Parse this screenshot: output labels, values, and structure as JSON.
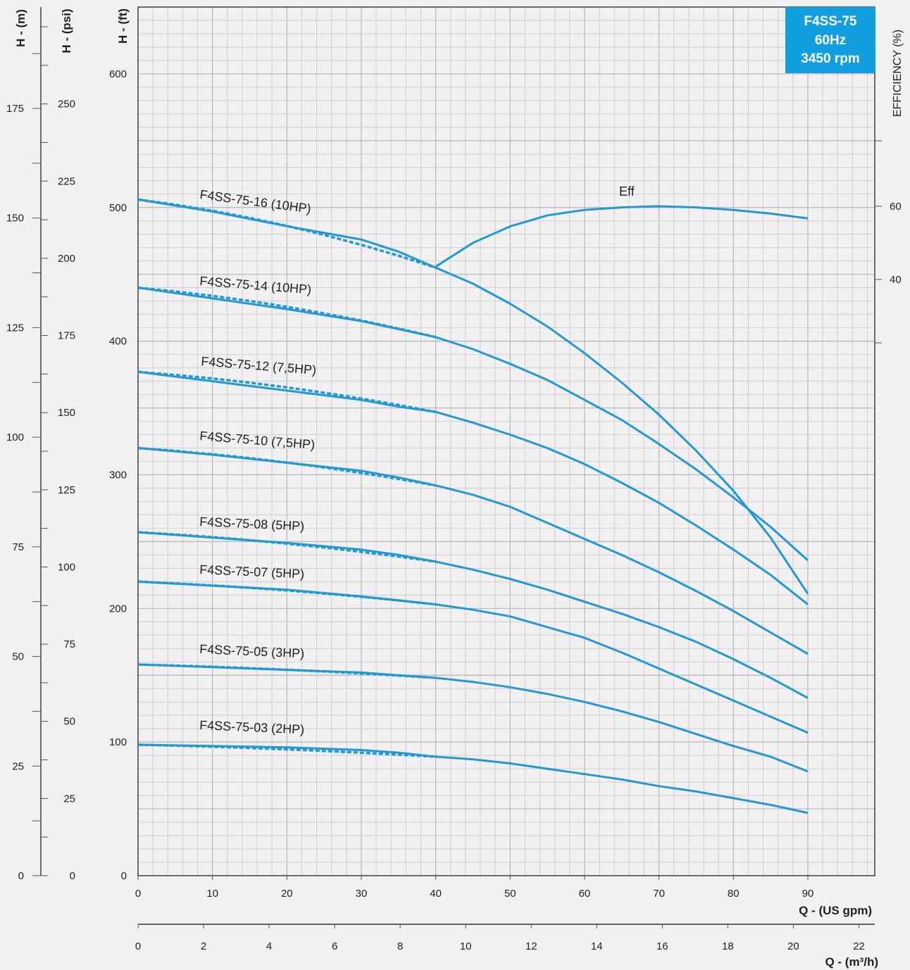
{
  "colors": {
    "curve": "#1f9ad9",
    "badge": "#129fe0",
    "background": "#f2f0f1"
  },
  "badge": {
    "line1": "F4SS-75",
    "line2": "60Hz",
    "line3": "3450 rpm"
  },
  "axes": {
    "h_m_label": "H - (m)",
    "h_psi_label": "H - (psi)",
    "h_ft_label": "H - (ft)",
    "efficiency_label": "EFFICIENCY (%)",
    "q_gpm_label": "Q - (US gpm)",
    "q_m3h_label": "Q - (m³/h)"
  },
  "chart_data": {
    "type": "line",
    "title": "",
    "x_label": "Q - (US gpm)",
    "x_secondary_label": "Q - (m³/h)",
    "y_label": "H - (ft)",
    "y_secondary_labels": [
      "H - (m)",
      "H - (psi)"
    ],
    "y2_label": "EFFICIENCY (%)",
    "xlim": [
      0,
      99
    ],
    "ylim": [
      0,
      650
    ],
    "x_ticks": [
      0,
      10,
      20,
      30,
      40,
      50,
      60,
      70,
      80,
      90
    ],
    "y_ticks": [
      0,
      100,
      200,
      300,
      400,
      500,
      600
    ],
    "x2_ticks": [
      0,
      2,
      4,
      6,
      8,
      10,
      12,
      14,
      16,
      18,
      20,
      22
    ],
    "h_m_ticks": [
      0,
      25,
      50,
      75,
      100,
      125,
      150,
      175
    ],
    "h_psi_ticks": [
      0,
      25,
      50,
      75,
      100,
      125,
      150,
      175,
      200,
      225,
      250
    ],
    "eff_ticks": [
      40,
      60
    ],
    "grid": true,
    "series": [
      {
        "name": "F4SS-75-16 (10HP)",
        "x": [
          0,
          10,
          20,
          30,
          35,
          40,
          45,
          50,
          55,
          60,
          65,
          70,
          75,
          80,
          85,
          90
        ],
        "y": [
          506,
          497,
          486,
          476,
          467,
          455,
          443,
          428,
          411,
          391,
          369,
          345,
          318,
          288,
          253,
          211
        ]
      },
      {
        "name": "F4SS-75-14 (10HP)",
        "x": [
          0,
          10,
          20,
          30,
          35,
          40,
          45,
          50,
          55,
          60,
          65,
          70,
          75,
          80,
          85,
          90
        ],
        "y": [
          440,
          432,
          424,
          415,
          409,
          403,
          394,
          383,
          371,
          356,
          341,
          323,
          304,
          283,
          261,
          236
        ]
      },
      {
        "name": "F4SS-75-12 (7,5HP)",
        "x": [
          0,
          10,
          20,
          30,
          35,
          40,
          45,
          50,
          55,
          60,
          65,
          70,
          75,
          80,
          85,
          90
        ],
        "y": [
          377,
          370,
          363,
          356,
          351,
          347,
          339,
          330,
          320,
          308,
          294,
          279,
          262,
          244,
          225,
          203
        ]
      },
      {
        "name": "F4SS-75-10 (7,5HP)",
        "x": [
          0,
          10,
          20,
          30,
          35,
          40,
          45,
          50,
          55,
          60,
          65,
          70,
          75,
          80,
          85,
          90
        ],
        "y": [
          320,
          315,
          309,
          303,
          298,
          292,
          285,
          276,
          264,
          252,
          240,
          227,
          213,
          198,
          182,
          166
        ]
      },
      {
        "name": "F4SS-75-08 (5HP)",
        "x": [
          0,
          10,
          20,
          30,
          35,
          40,
          45,
          50,
          55,
          60,
          65,
          70,
          75,
          80,
          85,
          90
        ],
        "y": [
          257,
          253,
          249,
          244,
          240,
          235,
          229,
          222,
          214,
          205,
          196,
          186,
          175,
          162,
          148,
          133
        ]
      },
      {
        "name": "F4SS-75-07 (5HP)",
        "x": [
          0,
          10,
          20,
          30,
          35,
          40,
          45,
          50,
          55,
          60,
          65,
          70,
          75,
          80,
          85,
          90
        ],
        "y": [
          220,
          217,
          214,
          209,
          206,
          203,
          199,
          194,
          186,
          178,
          167,
          155,
          143,
          131,
          119,
          107
        ]
      },
      {
        "name": "F4SS-75-05 (3HP)",
        "x": [
          0,
          10,
          20,
          30,
          35,
          40,
          45,
          50,
          55,
          60,
          65,
          70,
          75,
          80,
          85,
          90
        ],
        "y": [
          158,
          156,
          154,
          152,
          150,
          148,
          145,
          141,
          136,
          130,
          123,
          115,
          106,
          97,
          89,
          78
        ]
      },
      {
        "name": "F4SS-75-03 (2HP)",
        "x": [
          0,
          10,
          20,
          30,
          35,
          40,
          45,
          50,
          55,
          60,
          65,
          70,
          75,
          80,
          85,
          90
        ],
        "y": [
          98,
          97,
          96,
          94,
          92,
          89,
          87,
          84,
          80,
          76,
          72,
          67,
          63,
          58,
          53,
          47
        ]
      },
      {
        "name": "Eff",
        "axis": "efficiency",
        "x": [
          40,
          45,
          50,
          55,
          60,
          65,
          70,
          75,
          80,
          85,
          90
        ],
        "y": [
          43.5,
          50,
          54.5,
          57.5,
          59,
          59.7,
          60,
          59.7,
          59,
          58,
          56.7
        ]
      }
    ]
  }
}
